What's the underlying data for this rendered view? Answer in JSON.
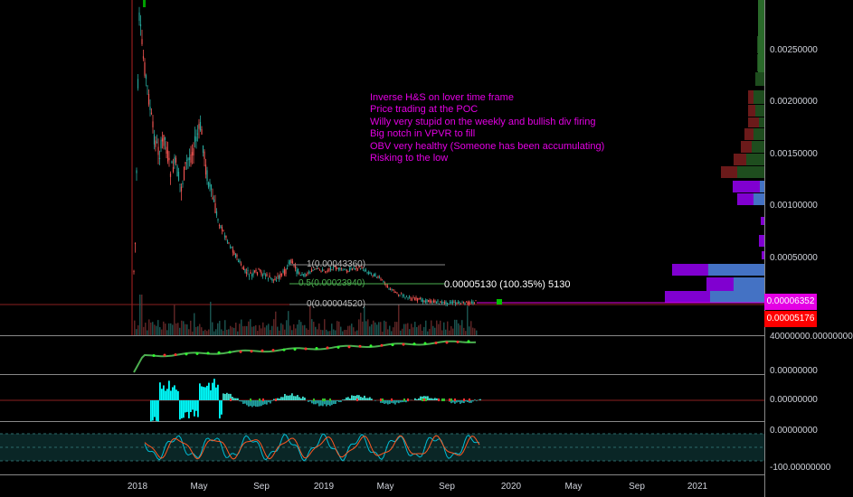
{
  "notes": [
    "Inverse H&S on lover time frame",
    "Price trading at the POC",
    "Willy very stupid on the weekly and bullish div firing",
    "Big notch in VPVR to fill",
    "OBV very healthy (Someone has been accumulating)",
    "Risking to the low"
  ],
  "fib": {
    "level_1": "1(0.00043360)",
    "level_05": "0.5(0.00023940)",
    "level_0": "0(0.00004520)"
  },
  "measure": "0.00005130 (100.35%) 5130",
  "price_axis": [
    "0.00250000",
    "0.00200000",
    "0.00150000",
    "0.00100000",
    "0.00050000"
  ],
  "price_tags": {
    "pink": "0.00006352",
    "red": "0.00005176"
  },
  "obv_axis": "40000000.00000000",
  "osc_axis": [
    "0.00000000",
    "0.00000000"
  ],
  "willy_axis": [
    "0.00000000",
    "-100.00000000"
  ],
  "time_axis": [
    "2018",
    "May",
    "Sep",
    "2019",
    "May",
    "Sep",
    "2020",
    "May",
    "Sep",
    "2021"
  ],
  "colors": {
    "up": "#26a69a",
    "down": "#ef5350",
    "pink": "#e400e4",
    "red": "#ff0000",
    "blue": "#4472c4",
    "purple": "#8000d0",
    "cyan": "#00ffff"
  }
}
